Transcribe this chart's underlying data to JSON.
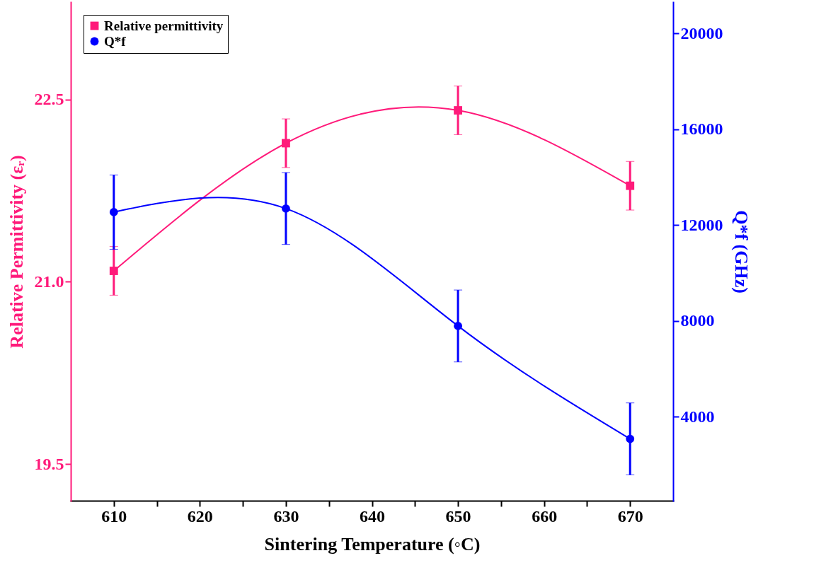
{
  "chart_data": {
    "type": "line",
    "xlabel": "Sintering Temperature (◦C)",
    "ylabel": "Relative Permittivity (εᵣ)",
    "y2label": "Q*f (GHz)",
    "x": [
      610,
      630,
      650,
      670
    ],
    "xlim": [
      605,
      675
    ],
    "xticks": [
      610,
      {
        "value": 615,
        "label": null
      },
      620,
      {
        "value": 625,
        "label": null
      },
      630,
      {
        "value": 635,
        "label": null
      },
      640,
      {
        "value": 645,
        "label": null
      },
      650,
      {
        "value": 655,
        "label": null
      },
      660,
      {
        "value": 665,
        "label": null
      },
      670
    ],
    "ylim": [
      19.2,
      23.3
    ],
    "yticks": [
      19.5,
      {
        "value": 21,
        "label": "21.0"
      },
      22.5
    ],
    "y2lim": [
      500,
      21300
    ],
    "y2ticks": [
      4000,
      8000,
      12000,
      16000,
      20000
    ],
    "legend": "top left",
    "line_style": "solid",
    "series": [
      {
        "name": "Relative permittivity",
        "color": "#ff1a7a",
        "marker": "square",
        "values": [
          21.09,
          22.14,
          22.41,
          21.79
        ],
        "errors": [
          0.2,
          0.2,
          0.2,
          0.2
        ]
      },
      {
        "name": "Q*f",
        "color": "#0000ff",
        "marker": "circle",
        "axis": "y2",
        "values": [
          12540,
          12690,
          7790,
          3080
        ],
        "errors": [
          1550,
          1500,
          1500,
          1500
        ]
      }
    ]
  }
}
